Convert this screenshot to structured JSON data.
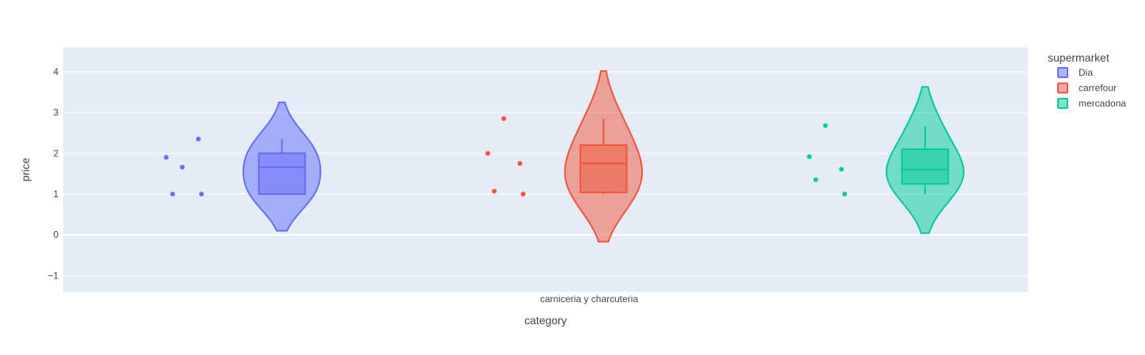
{
  "chart_data": {
    "type": "violin",
    "xlabel": "category",
    "ylabel": "price",
    "categories": [
      "carniceria y charcuteria"
    ],
    "ylim": [
      -1.4,
      4.6
    ],
    "yticks": [
      -1,
      0,
      1,
      2,
      3,
      4
    ],
    "ytick_labels": [
      "−1",
      "0",
      "1",
      "2",
      "3",
      "4"
    ],
    "grid": true,
    "legend": {
      "title": "supermarket",
      "position": "right"
    },
    "series": [
      {
        "name": "Dia",
        "color": "#636efa",
        "points": [
          1.9,
          1.66,
          2.35,
          1.0,
          1.0
        ],
        "box": {
          "q1": 1.0,
          "median": 1.66,
          "q3": 2.0,
          "lowerfence": 1.0,
          "upperfence": 2.35
        },
        "violin_span": [
          0.1,
          3.25
        ]
      },
      {
        "name": "carrefour",
        "color": "#ef553b",
        "points": [
          2.0,
          2.85,
          1.75,
          1.07,
          1.0
        ],
        "box": {
          "q1": 1.04,
          "median": 1.75,
          "q3": 2.2,
          "lowerfence": 1.0,
          "upperfence": 2.85
        },
        "violin_span": [
          -0.17,
          4.02
        ]
      },
      {
        "name": "mercadona",
        "color": "#00cc96",
        "points": [
          1.92,
          2.68,
          1.61,
          1.35,
          1.0
        ],
        "box": {
          "q1": 1.25,
          "median": 1.6,
          "q3": 2.1,
          "lowerfence": 1.0,
          "upperfence": 2.67
        },
        "violin_span": [
          0.04,
          3.63
        ]
      }
    ]
  }
}
